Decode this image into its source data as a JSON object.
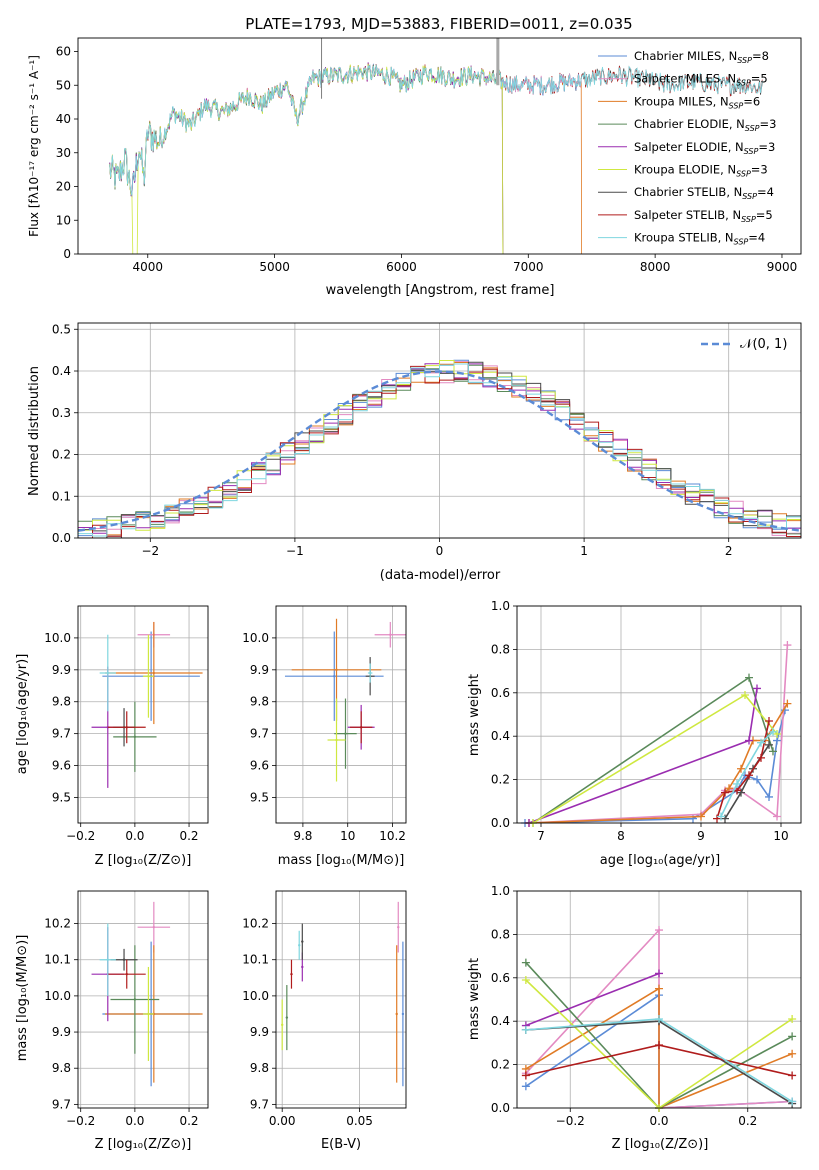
{
  "colors": {
    "Chabrier MILES": "#5b8bd6",
    "Salpeter MILES": "#e38ac2",
    "Kroupa MILES": "#e07b26",
    "Chabrier ELODIE": "#5a8a5a",
    "Salpeter ELODIE": "#9a2db0",
    "Kroupa ELODIE": "#cfe840",
    "Chabrier STELIB": "#4a4a4a",
    "Salpeter STELIB": "#b01c1c",
    "Kroupa STELIB": "#7fd6df"
  },
  "chart_data": [
    {
      "type": "line",
      "title": "PLATE=1793, MJD=53883, FIBERID=0011, z=0.035",
      "xlabel": "wavelength [Angstrom, rest frame]",
      "ylabel": "Flux [fλ10⁻¹⁷ erg cm⁻² s⁻¹ A⁻¹]",
      "xlim": [
        3450,
        9150
      ],
      "ylim": [
        0,
        64
      ],
      "xticks": [
        4000,
        5000,
        6000,
        7000,
        8000,
        9000
      ],
      "yticks": [
        0,
        10,
        20,
        30,
        40,
        50,
        60
      ],
      "legend_placement": "upper-right",
      "legend": [
        {
          "name": "Chabrier MILES",
          "label": "Chabrier MILES, N",
          "sub": "SSP",
          "tail": "=8"
        },
        {
          "name": "Salpeter MILES",
          "label": "Salpeter MILES, N",
          "sub": "SSP",
          "tail": "=5"
        },
        {
          "name": "Kroupa MILES",
          "label": "Kroupa MILES, N",
          "sub": "SSP",
          "tail": "=6"
        },
        {
          "name": "Chabrier ELODIE",
          "label": "Chabrier ELODIE, N",
          "sub": "SSP",
          "tail": "=3"
        },
        {
          "name": "Salpeter ELODIE",
          "label": "Salpeter ELODIE, N",
          "sub": "SSP",
          "tail": "=3"
        },
        {
          "name": "Kroupa ELODIE",
          "label": "Kroupa ELODIE, N",
          "sub": "SSP",
          "tail": "=3"
        },
        {
          "name": "Chabrier STELIB",
          "label": "Chabrier STELIB, N",
          "sub": "SSP",
          "tail": "=4"
        },
        {
          "name": "Salpeter STELIB",
          "label": "Salpeter STELIB, N",
          "sub": "SSP",
          "tail": "=5"
        },
        {
          "name": "Kroupa STELIB",
          "label": "Kroupa STELIB, N",
          "sub": "SSP",
          "tail": "=4"
        }
      ],
      "spectrum_anchors": [
        [
          3700,
          25
        ],
        [
          3760,
          22
        ],
        [
          3820,
          28
        ],
        [
          3880,
          18
        ],
        [
          3930,
          32
        ],
        [
          3970,
          22
        ],
        [
          4000,
          36
        ],
        [
          4100,
          33
        ],
        [
          4200,
          42
        ],
        [
          4340,
          38
        ],
        [
          4450,
          44
        ],
        [
          4600,
          42
        ],
        [
          4800,
          47
        ],
        [
          4900,
          44
        ],
        [
          5000,
          48
        ],
        [
          5100,
          50
        ],
        [
          5175,
          40
        ],
        [
          5300,
          52
        ],
        [
          5500,
          53
        ],
        [
          5700,
          54
        ],
        [
          5900,
          53
        ],
        [
          6000,
          50
        ],
        [
          6200,
          54
        ],
        [
          6400,
          52
        ],
        [
          6563,
          53
        ],
        [
          6700,
          52
        ],
        [
          6900,
          50
        ],
        [
          7100,
          50
        ],
        [
          7300,
          51
        ],
        [
          7500,
          52
        ],
        [
          7700,
          53
        ],
        [
          7900,
          52
        ],
        [
          8100,
          50
        ],
        [
          8300,
          51
        ],
        [
          8500,
          50
        ],
        [
          8700,
          50
        ],
        [
          8850,
          49
        ]
      ]
    },
    {
      "type": "area",
      "xlabel": "(data-model)/error",
      "ylabel": "Normed distribution",
      "xlim": [
        -2.5,
        2.5
      ],
      "ylim": [
        0,
        0.515
      ],
      "xticks": [
        -2,
        -1,
        0,
        1,
        2
      ],
      "xtick_labels": [
        "−2",
        "−1",
        "0",
        "1",
        "2"
      ],
      "yticks": [
        0.0,
        0.1,
        0.2,
        0.3,
        0.4,
        0.5
      ],
      "legend": "𝒩(0, 1)",
      "legend_placement": "upper-right",
      "bin_width": 0.1
    },
    {
      "type": "scatter",
      "xlabel": "Z [log₁₀(Z/Z⊙)]",
      "ylabel": "age  [log₁₀(age/yr)]",
      "xlim": [
        -0.21,
        0.27
      ],
      "ylim": [
        9.42,
        10.1
      ],
      "xticks": [
        -0.2,
        0.0,
        0.2
      ],
      "xtick_labels": [
        "−0.2",
        "0.0",
        "0.2"
      ],
      "yticks": [
        9.5,
        9.6,
        9.7,
        9.8,
        9.9,
        10.0
      ],
      "points": [
        {
          "series": "Chabrier MILES",
          "x": 0.06,
          "y": 9.88,
          "xerr": 0.18,
          "yerr": 0.14
        },
        {
          "series": "Salpeter MILES",
          "x": 0.07,
          "y": 10.01,
          "xerr": 0.06,
          "yerr": 0.04
        },
        {
          "series": "Kroupa MILES",
          "x": 0.07,
          "y": 9.89,
          "xerr": 0.18,
          "yerr": 0.16
        },
        {
          "series": "Chabrier ELODIE",
          "x": 0.0,
          "y": 9.69,
          "xerr": 0.08,
          "yerr": 0.11
        },
        {
          "series": "Salpeter ELODIE",
          "x": -0.1,
          "y": 9.72,
          "xerr": 0.06,
          "yerr": 0.19
        },
        {
          "series": "Kroupa ELODIE",
          "x": 0.05,
          "y": 9.88,
          "xerr": 0.02,
          "yerr": 0.13
        },
        {
          "series": "Chabrier STELIB",
          "x": -0.04,
          "y": 9.72,
          "xerr": 0.04,
          "yerr": 0.06
        },
        {
          "series": "Salpeter STELIB",
          "x": -0.03,
          "y": 9.72,
          "xerr": 0.07,
          "yerr": 0.05
        },
        {
          "series": "Kroupa STELIB",
          "x": -0.1,
          "y": 9.89,
          "xerr": 0.03,
          "yerr": 0.12
        }
      ]
    },
    {
      "type": "scatter",
      "xlabel": "mass [log₁₀(M/M⊙)]",
      "xlim": [
        9.68,
        10.26
      ],
      "ylim": [
        9.42,
        10.1
      ],
      "xticks": [
        9.8,
        10.0,
        10.2
      ],
      "yticks": [
        9.5,
        9.6,
        9.7,
        9.8,
        9.9,
        10.0
      ],
      "points": [
        {
          "series": "Chabrier MILES",
          "x": 9.94,
          "y": 9.88,
          "xerr": 0.22,
          "yerr": 0.14
        },
        {
          "series": "Salpeter MILES",
          "x": 10.19,
          "y": 10.01,
          "xerr": 0.07,
          "yerr": 0.04
        },
        {
          "series": "Kroupa MILES",
          "x": 9.95,
          "y": 9.9,
          "xerr": 0.2,
          "yerr": 0.16
        },
        {
          "series": "Chabrier ELODIE",
          "x": 9.99,
          "y": 9.7,
          "xerr": 0.05,
          "yerr": 0.11
        },
        {
          "series": "Salpeter ELODIE",
          "x": 10.06,
          "y": 9.72,
          "xerr": 0.06,
          "yerr": 0.07
        },
        {
          "series": "Kroupa ELODIE",
          "x": 9.95,
          "y": 9.68,
          "xerr": 0.04,
          "yerr": 0.13
        },
        {
          "series": "Chabrier STELIB",
          "x": 10.1,
          "y": 9.88,
          "xerr": 0.02,
          "yerr": 0.06
        },
        {
          "series": "Salpeter STELIB",
          "x": 10.06,
          "y": 9.72,
          "xerr": 0.05,
          "yerr": 0.05
        },
        {
          "series": "Kroupa STELIB",
          "x": 10.1,
          "y": 9.89,
          "xerr": 0.01,
          "yerr": 0.03
        }
      ]
    },
    {
      "type": "line",
      "xlabel": "age  [log₁₀(age/yr)]",
      "ylabel": "mass weight",
      "xlim": [
        6.7,
        10.25
      ],
      "ylim": [
        0,
        1
      ],
      "xticks": [
        7,
        8,
        9,
        10
      ],
      "yticks": [
        0.0,
        0.2,
        0.4,
        0.6,
        0.8,
        1.0
      ],
      "series": [
        {
          "name": "Chabrier MILES",
          "points": [
            [
              6.8,
              0.0
            ],
            [
              8.9,
              0.02
            ],
            [
              9.45,
              0.15
            ],
            [
              9.55,
              0.22
            ],
            [
              9.7,
              0.2
            ],
            [
              9.85,
              0.12
            ],
            [
              9.95,
              0.38
            ],
            [
              10.05,
              0.52
            ]
          ]
        },
        {
          "name": "Salpeter MILES",
          "points": [
            [
              6.85,
              0.0
            ],
            [
              9.0,
              0.04
            ],
            [
              9.3,
              0.15
            ],
            [
              9.45,
              0.16
            ],
            [
              9.95,
              0.03
            ],
            [
              10.08,
              0.82
            ]
          ]
        },
        {
          "name": "Kroupa MILES",
          "points": [
            [
              6.85,
              0.0
            ],
            [
              9.0,
              0.03
            ],
            [
              9.35,
              0.16
            ],
            [
              9.5,
              0.25
            ],
            [
              9.65,
              0.38
            ],
            [
              9.8,
              0.38
            ],
            [
              10.08,
              0.55
            ]
          ]
        },
        {
          "name": "Chabrier ELODIE",
          "points": [
            [
              6.9,
              0.0
            ],
            [
              9.6,
              0.67
            ],
            [
              9.9,
              0.33
            ]
          ]
        },
        {
          "name": "Salpeter ELODIE",
          "points": [
            [
              6.85,
              0.0
            ],
            [
              9.6,
              0.38
            ],
            [
              9.7,
              0.62
            ]
          ]
        },
        {
          "name": "Kroupa ELODIE",
          "points": [
            [
              6.9,
              0.0
            ],
            [
              9.55,
              0.59
            ],
            [
              9.95,
              0.41
            ]
          ]
        },
        {
          "name": "Chabrier STELIB",
          "points": [
            [
              9.3,
              0.02
            ],
            [
              9.5,
              0.14
            ],
            [
              9.65,
              0.25
            ],
            [
              9.85,
              0.36
            ]
          ]
        },
        {
          "name": "Salpeter STELIB",
          "points": [
            [
              9.2,
              0.02
            ],
            [
              9.3,
              0.14
            ],
            [
              9.45,
              0.15
            ],
            [
              9.6,
              0.22
            ],
            [
              9.75,
              0.3
            ],
            [
              9.85,
              0.47
            ]
          ]
        },
        {
          "name": "Kroupa STELIB",
          "points": [
            [
              9.25,
              0.03
            ],
            [
              9.45,
              0.18
            ],
            [
              9.75,
              0.37
            ],
            [
              9.9,
              0.42
            ]
          ]
        }
      ]
    },
    {
      "type": "scatter",
      "xlabel": "Z [log₁₀(Z/Z⊙)]",
      "ylabel": "mass [log₁₀(M/M⊙)]",
      "xlim": [
        -0.21,
        0.27
      ],
      "ylim": [
        9.69,
        10.29
      ],
      "xticks": [
        -0.2,
        0.0,
        0.2
      ],
      "xtick_labels": [
        "−0.2",
        "0.0",
        "0.2"
      ],
      "yticks": [
        9.7,
        9.8,
        9.9,
        10.0,
        10.1,
        10.2
      ],
      "points": [
        {
          "series": "Chabrier MILES",
          "x": 0.06,
          "y": 9.95,
          "xerr": 0.18,
          "yerr": 0.2
        },
        {
          "series": "Salpeter MILES",
          "x": 0.07,
          "y": 10.19,
          "xerr": 0.06,
          "yerr": 0.07
        },
        {
          "series": "Kroupa MILES",
          "x": 0.07,
          "y": 9.95,
          "xerr": 0.18,
          "yerr": 0.19
        },
        {
          "series": "Chabrier ELODIE",
          "x": 0.0,
          "y": 9.99,
          "xerr": 0.09,
          "yerr": 0.15
        },
        {
          "series": "Salpeter ELODIE",
          "x": -0.1,
          "y": 10.06,
          "xerr": 0.06,
          "yerr": 0.13
        },
        {
          "series": "Kroupa ELODIE",
          "x": 0.05,
          "y": 9.95,
          "xerr": 0.02,
          "yerr": 0.13
        },
        {
          "series": "Chabrier STELIB",
          "x": -0.04,
          "y": 10.1,
          "xerr": 0.05,
          "yerr": 0.03
        },
        {
          "series": "Salpeter STELIB",
          "x": -0.03,
          "y": 10.06,
          "xerr": 0.07,
          "yerr": 0.04
        },
        {
          "series": "Kroupa STELIB",
          "x": -0.1,
          "y": 10.1,
          "xerr": 0.03,
          "yerr": 0.1
        }
      ]
    },
    {
      "type": "scatter",
      "xlabel": "E(B-V)",
      "xlim": [
        -0.004,
        0.08
      ],
      "ylim": [
        9.69,
        10.29
      ],
      "xticks": [
        0.0,
        0.05
      ],
      "xtick_labels": [
        "0.00",
        "0.05"
      ],
      "yticks": [
        9.7,
        9.8,
        9.9,
        10.0,
        10.1,
        10.2
      ],
      "points": [
        {
          "series": "Chabrier MILES",
          "x": 0.078,
          "y": 9.95,
          "yerr": 0.2
        },
        {
          "series": "Salpeter MILES",
          "x": 0.075,
          "y": 10.19,
          "yerr": 0.07
        },
        {
          "series": "Kroupa MILES",
          "x": 0.074,
          "y": 9.95,
          "yerr": 0.19
        },
        {
          "series": "Chabrier ELODIE",
          "x": 0.003,
          "y": 9.94,
          "yerr": 0.09
        },
        {
          "series": "Salpeter ELODIE",
          "x": 0.013,
          "y": 10.08,
          "yerr": 0.04
        },
        {
          "series": "Kroupa ELODIE",
          "x": 0.0,
          "y": 9.92,
          "yerr": 0.07
        },
        {
          "series": "Chabrier STELIB",
          "x": 0.013,
          "y": 10.15,
          "yerr": 0.05
        },
        {
          "series": "Salpeter STELIB",
          "x": 0.006,
          "y": 10.06,
          "yerr": 0.04
        },
        {
          "series": "Kroupa STELIB",
          "x": 0.011,
          "y": 10.14,
          "yerr": 0.04
        }
      ]
    },
    {
      "type": "line",
      "xlabel": "Z [log₁₀(Z/Z⊙)]",
      "ylabel": "mass weight",
      "xlim": [
        -0.32,
        0.32
      ],
      "ylim": [
        0,
        1
      ],
      "xticks": [
        -0.2,
        0.0,
        0.2
      ],
      "xtick_labels": [
        "−0.2",
        "0.0",
        "0.2"
      ],
      "yticks": [
        0.0,
        0.2,
        0.4,
        0.6,
        0.8,
        1.0
      ],
      "series": [
        {
          "name": "Chabrier MILES",
          "points": [
            [
              -0.3,
              0.1
            ],
            [
              0.0,
              0.52
            ],
            [
              0.0,
              0.0
            ],
            [
              0.3,
              0.03
            ]
          ]
        },
        {
          "name": "Salpeter MILES",
          "points": [
            [
              -0.3,
              0.16
            ],
            [
              0.0,
              0.82
            ],
            [
              0.0,
              0.0
            ],
            [
              0.3,
              0.03
            ]
          ]
        },
        {
          "name": "Kroupa MILES",
          "points": [
            [
              -0.3,
              0.18
            ],
            [
              0.0,
              0.55
            ],
            [
              0.0,
              0.0
            ],
            [
              0.3,
              0.25
            ]
          ]
        },
        {
          "name": "Chabrier ELODIE",
          "points": [
            [
              -0.3,
              0.67
            ],
            [
              0.0,
              0.0
            ],
            [
              0.3,
              0.33
            ]
          ]
        },
        {
          "name": "Salpeter ELODIE",
          "points": [
            [
              -0.3,
              0.38
            ],
            [
              0.0,
              0.62
            ]
          ]
        },
        {
          "name": "Kroupa ELODIE",
          "points": [
            [
              -0.3,
              0.59
            ],
            [
              0.0,
              0.0
            ],
            [
              0.3,
              0.41
            ]
          ]
        },
        {
          "name": "Chabrier STELIB",
          "points": [
            [
              -0.3,
              0.36
            ],
            [
              0.0,
              0.4
            ],
            [
              0.3,
              0.02
            ]
          ]
        },
        {
          "name": "Salpeter STELIB",
          "points": [
            [
              -0.3,
              0.15
            ],
            [
              0.0,
              0.29
            ],
            [
              0.3,
              0.15
            ]
          ]
        },
        {
          "name": "Kroupa STELIB",
          "points": [
            [
              -0.3,
              0.36
            ],
            [
              0.0,
              0.41
            ],
            [
              0.3,
              0.03
            ]
          ]
        }
      ]
    }
  ]
}
